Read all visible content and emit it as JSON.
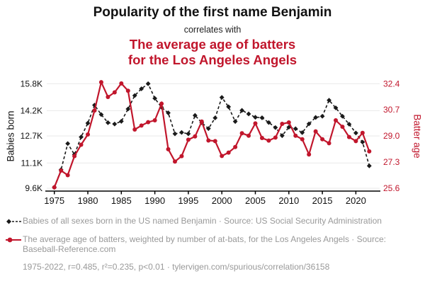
{
  "header": {
    "title": "Popularity of the first name Benjamin",
    "connector": "correlates with",
    "red_subtitle_line1": "The average age of batters",
    "red_subtitle_line2": "for the Los Angeles Angels"
  },
  "colors": {
    "accent_red": "#c1162c",
    "series_black": "#1a1a1a",
    "legend_gray": "#999999",
    "gridline_gray": "#e9e9e9",
    "axis_black": "#000000"
  },
  "legend": {
    "babies_marker": "black-diamond-dashed-line",
    "babies_text": "Babies of all sexes born in the US named Benjamin · Source: US Social Security Administration",
    "batter_marker": "red-dot-solid-line",
    "batter_text": "The average age of batters, weighted by number of at-bats, for the Los Angeles Angels · Source: Baseball-Reference.com"
  },
  "footer_stats": "1975-2022, r=0.485, r²=0.235, p<0.01 · tylervigen.com/spurious/correlation/36158",
  "chart_data": {
    "type": "line",
    "title": "Popularity of the first name Benjamin correlates with the average age of batters for the Los Angeles Angels",
    "x_label_years": [
      1975,
      1980,
      1985,
      1990,
      1995,
      2000,
      2005,
      2010,
      2015,
      2020
    ],
    "x": [
      1975,
      1976,
      1977,
      1978,
      1979,
      1980,
      1981,
      1982,
      1983,
      1984,
      1985,
      1986,
      1987,
      1988,
      1989,
      1990,
      1991,
      1992,
      1993,
      1994,
      1995,
      1996,
      1997,
      1998,
      1999,
      2000,
      2001,
      2002,
      2003,
      2004,
      2005,
      2006,
      2007,
      2008,
      2009,
      2010,
      2011,
      2012,
      2013,
      2014,
      2015,
      2016,
      2017,
      2018,
      2019,
      2020,
      2021,
      2022
    ],
    "series": [
      {
        "name": "Babies born (thousands)",
        "axis": "left",
        "style": "dashed-diamond",
        "color": "#1a1a1a",
        "values": [
          9.66,
          10.7,
          12.25,
          11.6,
          12.64,
          13.46,
          14.53,
          13.97,
          13.49,
          13.41,
          13.57,
          14.3,
          15.1,
          15.5,
          15.8,
          14.93,
          14.4,
          14.07,
          12.83,
          12.91,
          12.83,
          13.92,
          13.49,
          13.14,
          13.77,
          14.99,
          14.43,
          13.56,
          14.22,
          14.01,
          13.81,
          13.78,
          13.5,
          13.2,
          12.72,
          13.22,
          13.13,
          12.9,
          13.42,
          13.8,
          13.87,
          14.82,
          14.37,
          13.87,
          13.4,
          12.88,
          12.34,
          10.93
        ]
      },
      {
        "name": "Batter age (years)",
        "axis": "right",
        "style": "solid-circle",
        "color": "#c1162c",
        "values": [
          25.66,
          26.75,
          26.45,
          27.69,
          28.43,
          29.1,
          30.66,
          32.5,
          31.54,
          31.84,
          32.42,
          31.94,
          29.42,
          29.68,
          29.9,
          30.02,
          31.1,
          28.14,
          27.34,
          27.69,
          28.76,
          28.97,
          29.94,
          28.71,
          28.67,
          27.7,
          27.92,
          28.28,
          29.18,
          29.02,
          29.82,
          28.87,
          28.7,
          28.9,
          29.79,
          29.88,
          29.02,
          28.79,
          27.8,
          29.3,
          28.79,
          28.53,
          30.02,
          29.6,
          28.93,
          28.67,
          29.2,
          28.0
        ]
      }
    ],
    "left_axis": {
      "label": "Babies born",
      "range": [
        9.6,
        15.8
      ],
      "ticks": [
        9.6,
        11.1,
        12.7,
        14.2,
        15.8
      ],
      "tick_labels": [
        "9.6K",
        "11.1K",
        "12.7K",
        "14.2K",
        "15.8K"
      ]
    },
    "right_axis": {
      "label": "Batter age",
      "range": [
        25.6,
        32.4
      ],
      "ticks": [
        25.6,
        27.3,
        29.0,
        30.7,
        32.4
      ],
      "tick_labels": [
        "25.6",
        "27.3",
        "29.0",
        "30.7",
        "32.4"
      ]
    },
    "grid": "horizontal-only",
    "legend_position": "bottom"
  }
}
